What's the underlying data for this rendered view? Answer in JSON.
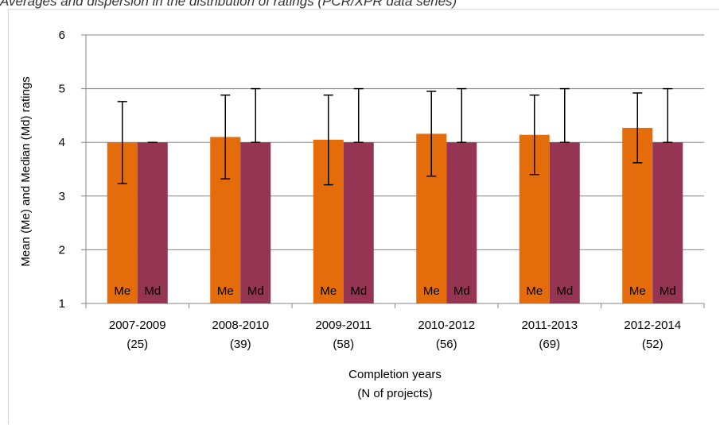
{
  "caption": "Averages and dispersion in the distribution of ratings (PCR/XPR data series)",
  "colors": {
    "mean": "#e46c0a",
    "median": "#953553",
    "gridline": "#868686",
    "errorbar": "#000000"
  },
  "chart_data": {
    "type": "bar",
    "title": "",
    "ylabel": "Mean (Me) and Median (Md) ratings",
    "xlabel": [
      "Completion years",
      "(N of projects)"
    ],
    "ylim": [
      1,
      6
    ],
    "yticks": [
      1,
      2,
      3,
      4,
      5,
      6
    ],
    "grid": true,
    "legend": "none",
    "categories": [
      [
        "2007-2009",
        "(25)"
      ],
      [
        "2008-2010",
        "(39)"
      ],
      [
        "2009-2011",
        "(58)"
      ],
      [
        "2010-2012",
        "(56)"
      ],
      [
        "2011-2013",
        "(69)"
      ],
      [
        "2012-2014",
        "(52)"
      ]
    ],
    "series": [
      {
        "name": "Me",
        "values": [
          4.0,
          4.1,
          4.05,
          4.16,
          4.14,
          4.27
        ],
        "error_low": [
          3.23,
          3.32,
          3.21,
          3.37,
          3.4,
          3.62
        ],
        "error_high": [
          4.76,
          4.88,
          4.88,
          4.95,
          4.88,
          4.92
        ]
      },
      {
        "name": "Md",
        "values": [
          4.0,
          4.0,
          4.0,
          4.0,
          4.0,
          4.0
        ],
        "error_low": [
          4.0,
          4.0,
          4.0,
          4.0,
          4.0,
          4.0
        ],
        "error_high": [
          4.0,
          5.0,
          5.0,
          5.0,
          5.0,
          5.0
        ]
      }
    ]
  }
}
